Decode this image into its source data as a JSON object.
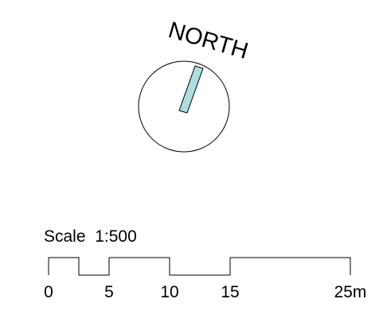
{
  "north_arrow": {
    "label": "NORTH",
    "needle_color": "#a9dfdf",
    "rotation_degrees": 16
  },
  "scale_bar": {
    "title": "Scale  1:500",
    "tick_labels": [
      "0",
      "5",
      "10",
      "15",
      "25m"
    ],
    "segment_values_m": [
      0,
      2.5,
      5,
      10,
      15,
      25
    ]
  }
}
